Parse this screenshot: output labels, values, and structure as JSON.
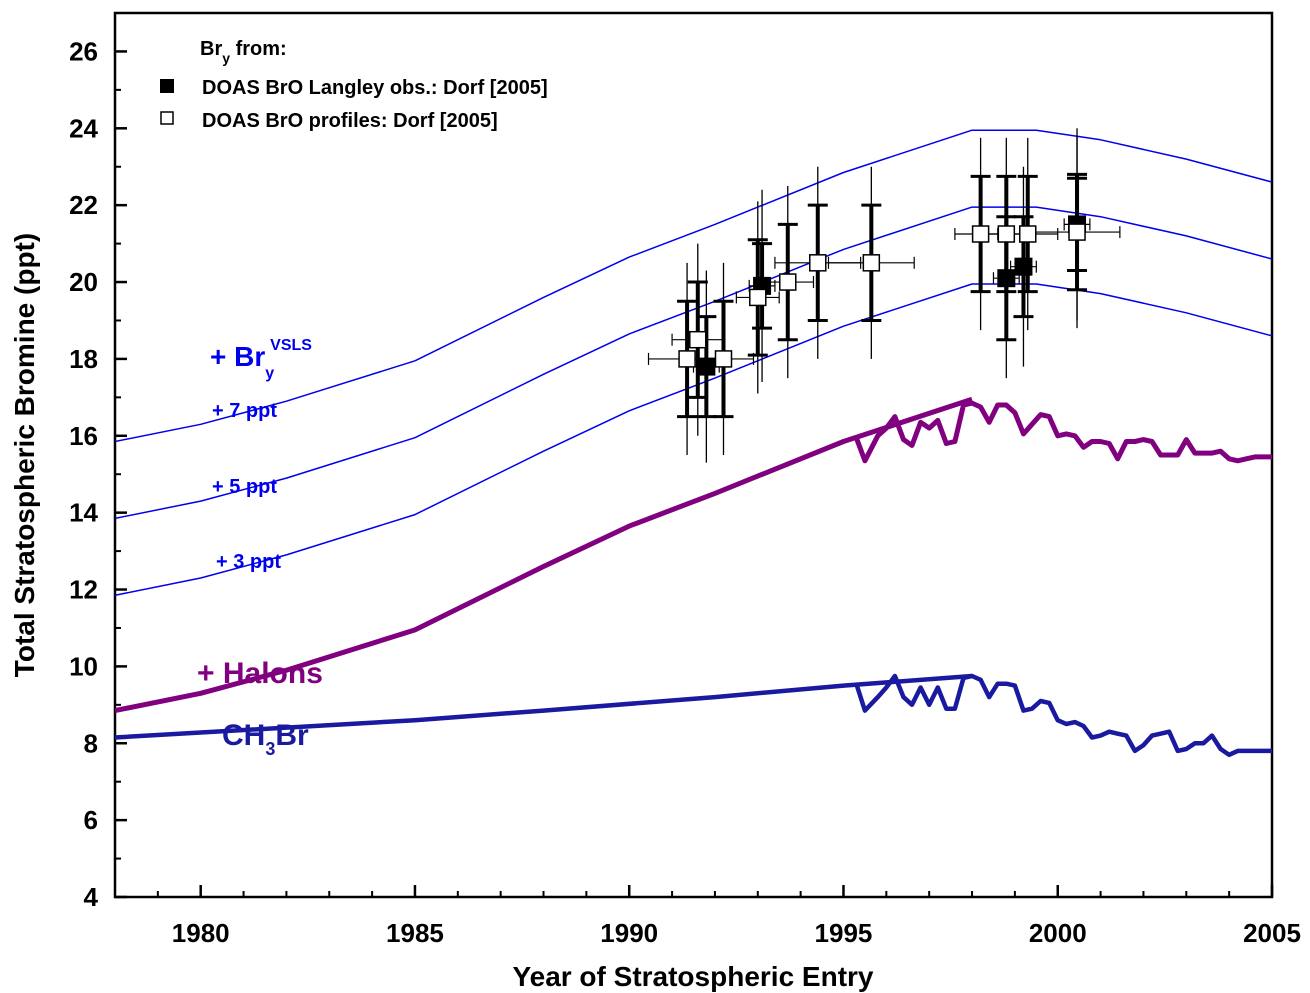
{
  "chart_data": {
    "type": "line",
    "xlabel": "Year of Stratospheric Entry",
    "ylabel": "Total Stratospheric Bromine (ppt)",
    "xlim": [
      1978,
      2005
    ],
    "ylim": [
      4,
      27
    ],
    "x_ticks": [
      1980,
      1985,
      1990,
      1995,
      2000,
      2005
    ],
    "y_ticks": [
      4,
      6,
      8,
      10,
      12,
      14,
      16,
      18,
      20,
      22,
      24,
      26
    ],
    "grid": false,
    "legend": {
      "placement": "top-left",
      "title_main": "Br",
      "title_sub": "y",
      "title_rest": " from:",
      "entries": [
        {
          "label": "DOAS BrO Langley obs.: Dorf [2005]",
          "marker": "filled-square"
        },
        {
          "label": "DOAS BrO profiles: Dorf [2005]",
          "marker": "open-square"
        }
      ]
    },
    "colors": {
      "ch3br": "#1a1aa0",
      "halons": "#800080",
      "vsls": "#0000ee",
      "obs": "#000000"
    },
    "annotations": {
      "vsls_main": "+ Br",
      "vsls_sub": "y",
      "vsls_sup": "VSLS",
      "vsls7": "+ 7 ppt",
      "vsls5": "+ 5 ppt",
      "vsls3": "+ 3 ppt",
      "halons": "+ Halons",
      "ch3br_main": "CH",
      "ch3br_sub": "3",
      "ch3br_rest": "Br"
    },
    "series": [
      {
        "id": "ch3br_trend",
        "x": [
          1978,
          1985,
          1988,
          1992,
          1995,
          1998
        ],
        "y": [
          8.15,
          8.6,
          8.85,
          9.2,
          9.5,
          9.75
        ]
      },
      {
        "id": "ch3br_obs",
        "x": [
          1995.3,
          1995.5,
          1995.8,
          1996.0,
          1996.2,
          1996.4,
          1996.6,
          1996.8,
          1997.0,
          1997.2,
          1997.4,
          1997.6,
          1997.8,
          1998.0,
          1998.2,
          1998.4,
          1998.6,
          1998.8,
          1999.0,
          1999.2,
          1999.4,
          1999.6,
          1999.8,
          2000.0,
          2000.2,
          2000.4,
          2000.6,
          2000.8,
          2001.0,
          2001.2,
          2001.4,
          2001.6,
          2001.8,
          2002.0,
          2002.2,
          2002.4,
          2002.6,
          2002.8,
          2003.0,
          2003.2,
          2003.4,
          2003.6,
          2003.8,
          2004.0,
          2004.2,
          2004.4,
          2004.6,
          2004.8,
          2005.0
        ],
        "y": [
          9.55,
          8.85,
          9.2,
          9.45,
          9.75,
          9.2,
          9.0,
          9.45,
          9.0,
          9.45,
          8.9,
          8.9,
          9.7,
          9.75,
          9.65,
          9.2,
          9.55,
          9.55,
          9.5,
          8.85,
          8.9,
          9.1,
          9.05,
          8.6,
          8.5,
          8.55,
          8.45,
          8.15,
          8.2,
          8.3,
          8.25,
          8.2,
          7.8,
          7.95,
          8.2,
          8.25,
          8.3,
          7.8,
          7.85,
          8.0,
          8.0,
          8.2,
          7.85,
          7.7,
          7.8,
          7.8,
          7.8,
          7.8,
          7.8
        ]
      },
      {
        "id": "halons_trend",
        "x": [
          1978,
          1980,
          1982,
          1985,
          1988,
          1990,
          1992,
          1995,
          1998
        ],
        "y": [
          8.85,
          9.3,
          9.9,
          10.95,
          12.6,
          13.65,
          14.5,
          15.85,
          16.95
        ]
      },
      {
        "id": "halons_obs",
        "x": [
          1995.3,
          1995.5,
          1995.8,
          1996.0,
          1996.2,
          1996.4,
          1996.6,
          1996.8,
          1997.0,
          1997.2,
          1997.4,
          1997.6,
          1997.8,
          1998.0,
          1998.2,
          1998.4,
          1998.6,
          1998.8,
          1999.0,
          1999.2,
          1999.4,
          1999.6,
          1999.8,
          2000.0,
          2000.2,
          2000.4,
          2000.6,
          2000.8,
          2001.0,
          2001.2,
          2001.4,
          2001.6,
          2001.8,
          2002.0,
          2002.2,
          2002.4,
          2002.6,
          2002.8,
          2003.0,
          2003.2,
          2003.4,
          2003.6,
          2003.8,
          2004.0,
          2004.2,
          2004.4,
          2004.6,
          2004.8,
          2005.0
        ],
        "y": [
          15.95,
          15.35,
          16.0,
          16.2,
          16.5,
          15.9,
          15.75,
          16.35,
          16.2,
          16.4,
          15.8,
          15.85,
          16.8,
          16.85,
          16.75,
          16.35,
          16.8,
          16.8,
          16.6,
          16.05,
          16.3,
          16.55,
          16.5,
          16.0,
          16.05,
          16.0,
          15.7,
          15.85,
          15.85,
          15.8,
          15.4,
          15.85,
          15.85,
          15.9,
          15.85,
          15.5,
          15.5,
          15.5,
          15.9,
          15.55,
          15.55,
          15.55,
          15.6,
          15.4,
          15.35,
          15.4,
          15.45,
          15.45,
          15.45
        ]
      },
      {
        "id": "vsls_plus3",
        "x": [
          1978,
          1980,
          1982,
          1985,
          1988,
          1990,
          1992,
          1995,
          1998,
          1999.5,
          2001,
          2003,
          2005
        ],
        "y": [
          11.85,
          12.3,
          12.9,
          13.95,
          15.6,
          16.65,
          17.5,
          18.85,
          19.95,
          19.95,
          19.7,
          19.2,
          18.6
        ]
      },
      {
        "id": "vsls_plus5",
        "x": [
          1978,
          1980,
          1982,
          1985,
          1988,
          1990,
          1992,
          1995,
          1998,
          1999.5,
          2001,
          2003,
          2005
        ],
        "y": [
          13.85,
          14.3,
          14.9,
          15.95,
          17.6,
          18.65,
          19.5,
          20.85,
          21.95,
          21.95,
          21.7,
          21.2,
          20.6
        ]
      },
      {
        "id": "vsls_plus7",
        "x": [
          1978,
          1980,
          1982,
          1985,
          1988,
          1990,
          1992,
          1995,
          1998,
          1999.5,
          2001,
          2003,
          2005
        ],
        "y": [
          15.85,
          16.3,
          16.9,
          17.95,
          19.6,
          20.65,
          21.5,
          22.85,
          23.95,
          23.95,
          23.7,
          23.2,
          22.6
        ]
      }
    ],
    "observations": [
      {
        "kind": "langley",
        "x": 1991.8,
        "y": 17.8,
        "xerr": 0.3,
        "yerr_thick": 1.3,
        "yerr_thin": 2.5
      },
      {
        "kind": "langley",
        "x": 1993.1,
        "y": 19.9,
        "xerr": 0.3,
        "yerr_thick": 1.1,
        "yerr_thin": 2.5
      },
      {
        "kind": "langley",
        "x": 1998.8,
        "y": 20.1,
        "xerr": 0.3,
        "yerr_thick": 1.6,
        "yerr_thin": 2.6
      },
      {
        "kind": "langley",
        "x": 1999.2,
        "y": 20.4,
        "xerr": 0.3,
        "yerr_thick": 1.3,
        "yerr_thin": 2.6
      },
      {
        "kind": "langley",
        "x": 2000.45,
        "y": 21.5,
        "xerr": 0.3,
        "yerr_thick": 1.2,
        "yerr_thin": 2.5
      },
      {
        "kind": "profile",
        "x": 1991.35,
        "y": 18.0,
        "xerr": 0.9,
        "yerr_thick": 1.5,
        "yerr_thin": 2.5
      },
      {
        "kind": "profile",
        "x": 1991.6,
        "y": 18.5,
        "xerr": 0.6,
        "yerr_thick": 1.5,
        "yerr_thin": 2.5
      },
      {
        "kind": "profile",
        "x": 1992.2,
        "y": 18.0,
        "xerr": 0.7,
        "yerr_thick": 1.5,
        "yerr_thin": 2.5
      },
      {
        "kind": "profile",
        "x": 1993.0,
        "y": 19.6,
        "xerr": 0.5,
        "yerr_thick": 1.5,
        "yerr_thin": 2.5
      },
      {
        "kind": "profile",
        "x": 1993.7,
        "y": 20.0,
        "xerr": 0.6,
        "yerr_thick": 1.5,
        "yerr_thin": 2.5
      },
      {
        "kind": "profile",
        "x": 1994.4,
        "y": 20.5,
        "xerr": 1.0,
        "yerr_thick": 1.5,
        "yerr_thin": 2.5
      },
      {
        "kind": "profile",
        "x": 1995.65,
        "y": 20.5,
        "xerr": 1.0,
        "yerr_thick": 1.5,
        "yerr_thin": 2.5
      },
      {
        "kind": "profile",
        "x": 1998.2,
        "y": 21.25,
        "xerr": 0.6,
        "yerr_thick": 1.5,
        "yerr_thin": 2.5
      },
      {
        "kind": "profile",
        "x": 1998.8,
        "y": 21.25,
        "xerr": 0.6,
        "yerr_thick": 1.5,
        "yerr_thin": 2.5
      },
      {
        "kind": "profile",
        "x": 1999.3,
        "y": 21.25,
        "xerr": 0.7,
        "yerr_thick": 1.5,
        "yerr_thin": 2.5
      },
      {
        "kind": "profile",
        "x": 2000.45,
        "y": 21.3,
        "xerr": 1.0,
        "yerr_thick": 1.5,
        "yerr_thin": 2.5
      }
    ]
  }
}
